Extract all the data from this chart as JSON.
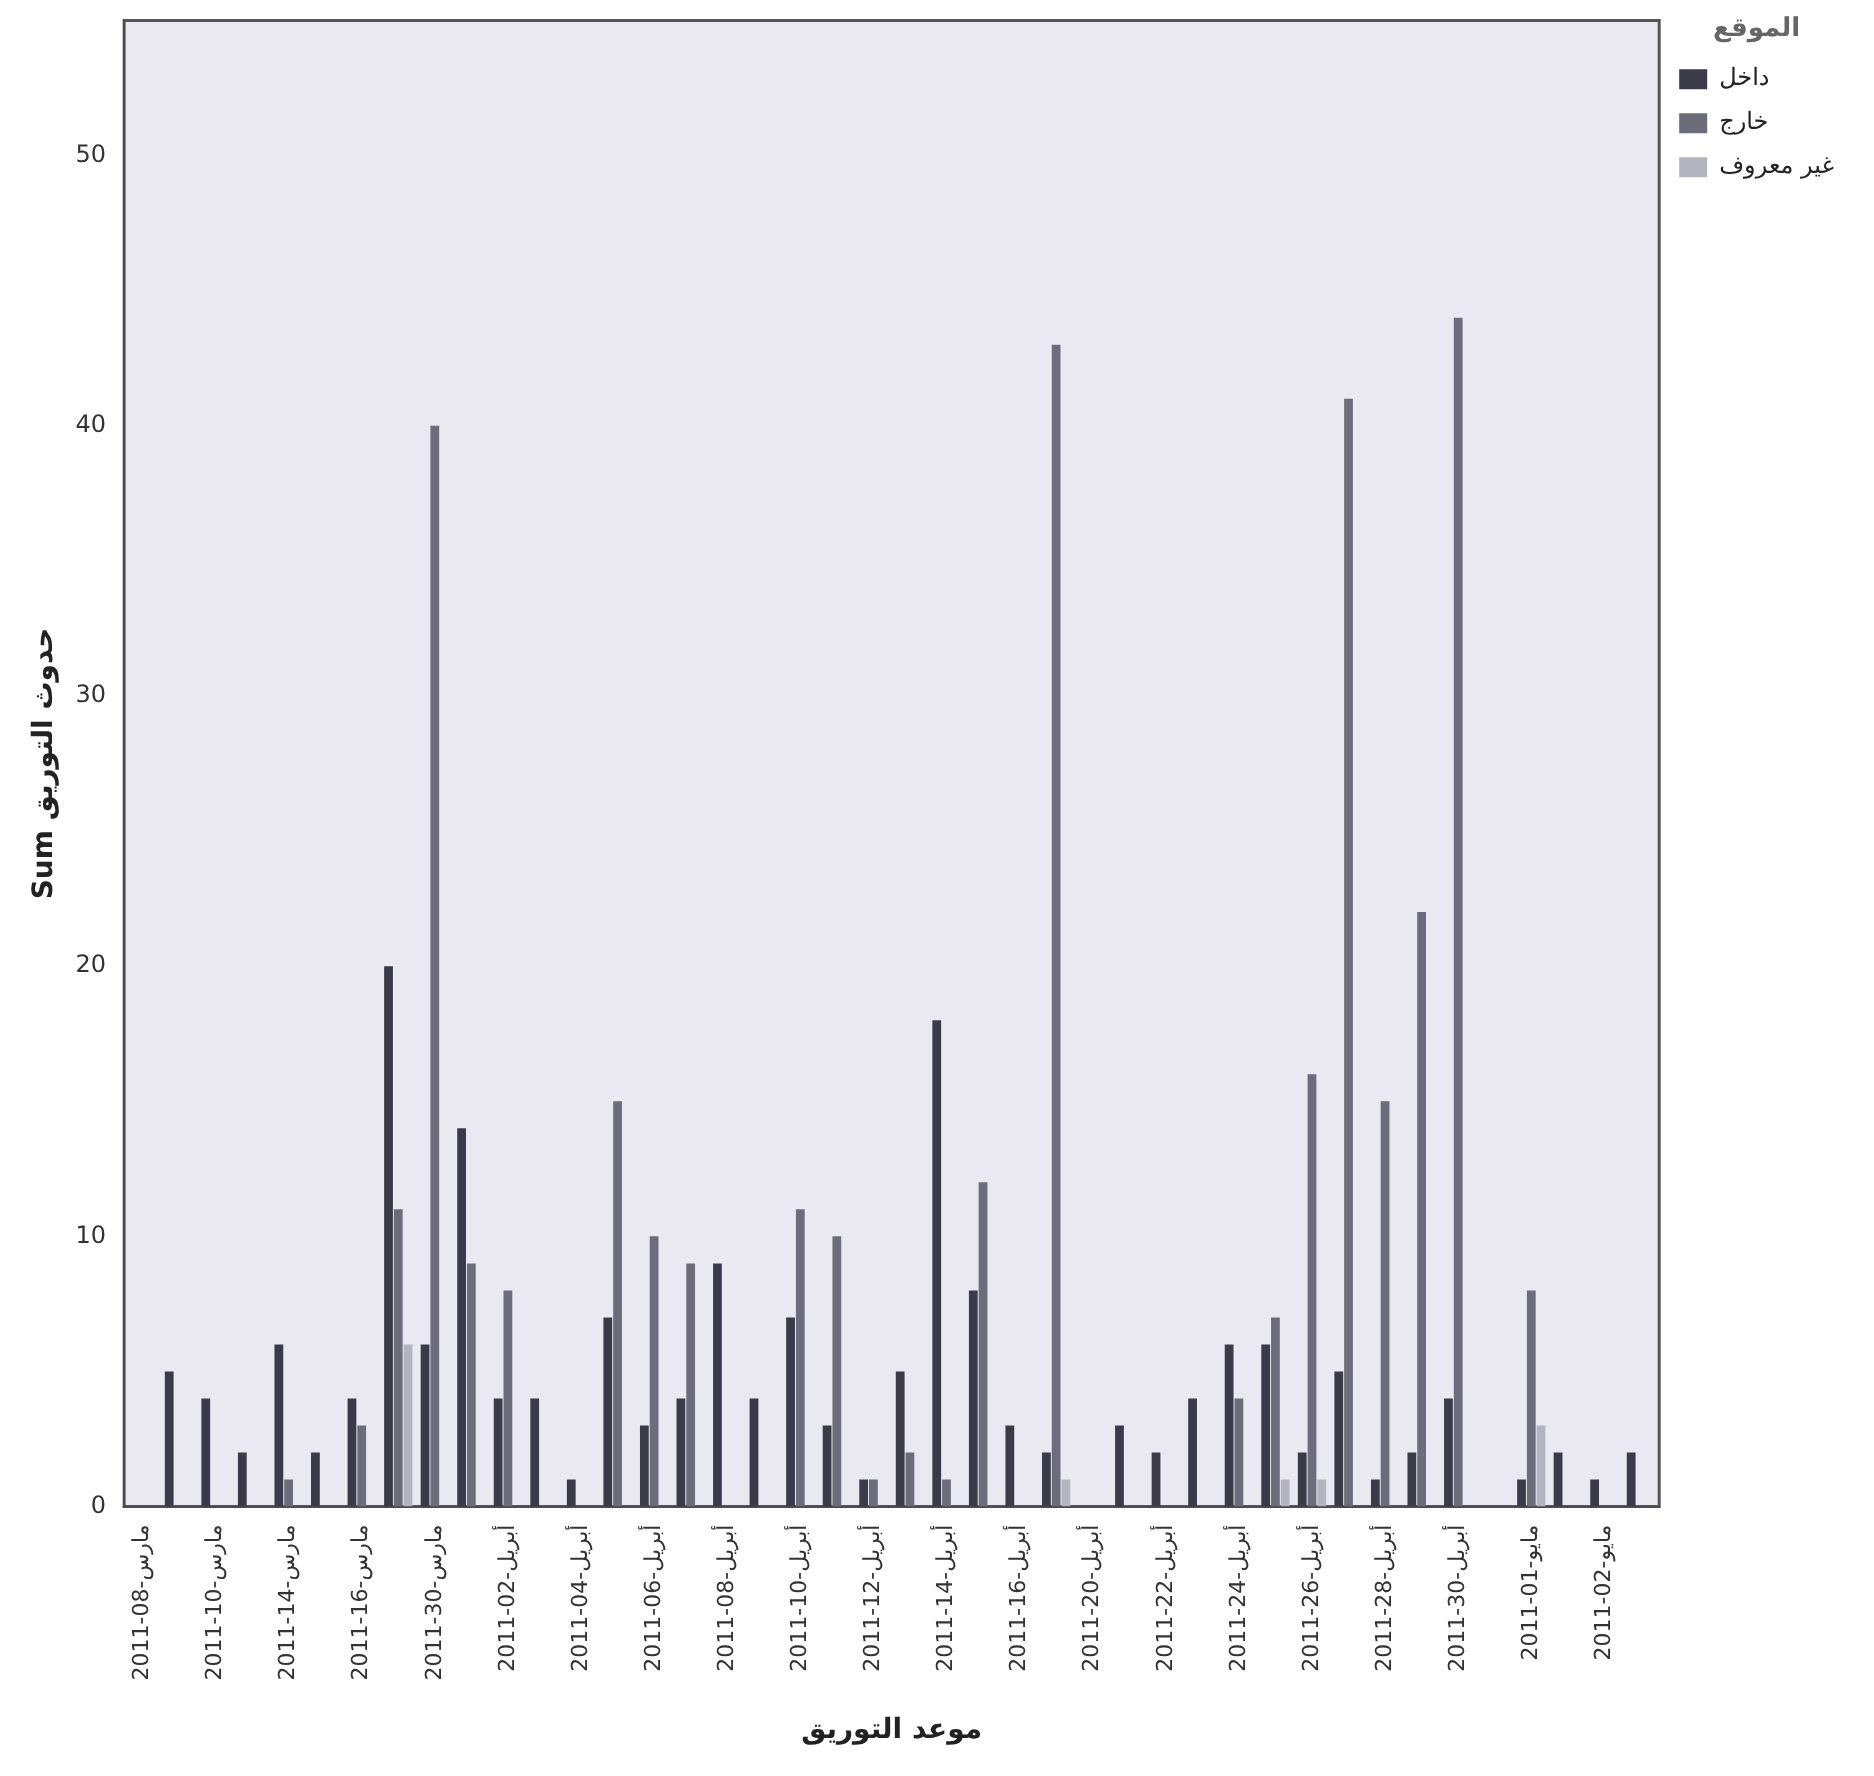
{
  "chart_data": {
    "type": "bar",
    "xlabel": "موعد التوريق",
    "ylabel": "Sum حدوث التوريق",
    "legend_title": "الموقع",
    "legend": "top right",
    "grid": false,
    "categories": [
      "2011-مارس-08",
      null,
      "2011-مارس-10",
      null,
      "2011-مارس-14",
      null,
      "2011-مارس-16",
      null,
      "2011-مارس-30",
      null,
      "2011-أبريل-02",
      null,
      "2011-أبريل-04",
      null,
      "2011-أبريل-06",
      null,
      "2011-أبريل-08",
      null,
      "2011-أبريل-10",
      null,
      "2011-أبريل-12",
      null,
      "2011-أبريل-14",
      null,
      "2011-أبريل-16",
      null,
      "2011-أبريل-20",
      null,
      "2011-أبريل-22",
      null,
      "2011-أبريل-24",
      null,
      "2011-أبريل-26",
      null,
      "2011-أبريل-28",
      null,
      "2011-أبريل-30",
      null,
      "2011-مايو-01",
      null,
      "2011-مايو-02",
      null
    ],
    "ylim": [
      0,
      55
    ],
    "yticks": [
      0,
      10,
      20,
      30,
      40,
      50
    ],
    "series": [
      {
        "name": "داخل",
        "color": "#3a3a48",
        "values": [
          null,
          5,
          4,
          2,
          6,
          2,
          4,
          20,
          6,
          14,
          4,
          4,
          1,
          7,
          3,
          4,
          9,
          4,
          7,
          3,
          1,
          5,
          18,
          8,
          3,
          2,
          null,
          3,
          2,
          4,
          6,
          6,
          2,
          5,
          1,
          2,
          4,
          null,
          1,
          2,
          1,
          2
        ]
      },
      {
        "name": "خارج",
        "color": "#6c6c7a",
        "values": [
          null,
          null,
          null,
          null,
          1,
          null,
          3,
          11,
          40,
          9,
          8,
          null,
          null,
          15,
          10,
          9,
          null,
          null,
          11,
          10,
          1,
          2,
          1,
          12,
          null,
          43,
          null,
          null,
          null,
          null,
          4,
          7,
          16,
          41,
          15,
          22,
          44,
          null,
          8,
          null,
          null,
          null
        ]
      },
      {
        "name": "غير معروف",
        "color": "#b4b4c0",
        "values": [
          null,
          null,
          null,
          null,
          null,
          null,
          null,
          6,
          null,
          null,
          null,
          null,
          null,
          null,
          null,
          null,
          null,
          null,
          null,
          null,
          null,
          null,
          null,
          null,
          null,
          1,
          null,
          null,
          null,
          null,
          null,
          1,
          1,
          null,
          null,
          null,
          null,
          null,
          3,
          null,
          null,
          null
        ]
      }
    ]
  }
}
